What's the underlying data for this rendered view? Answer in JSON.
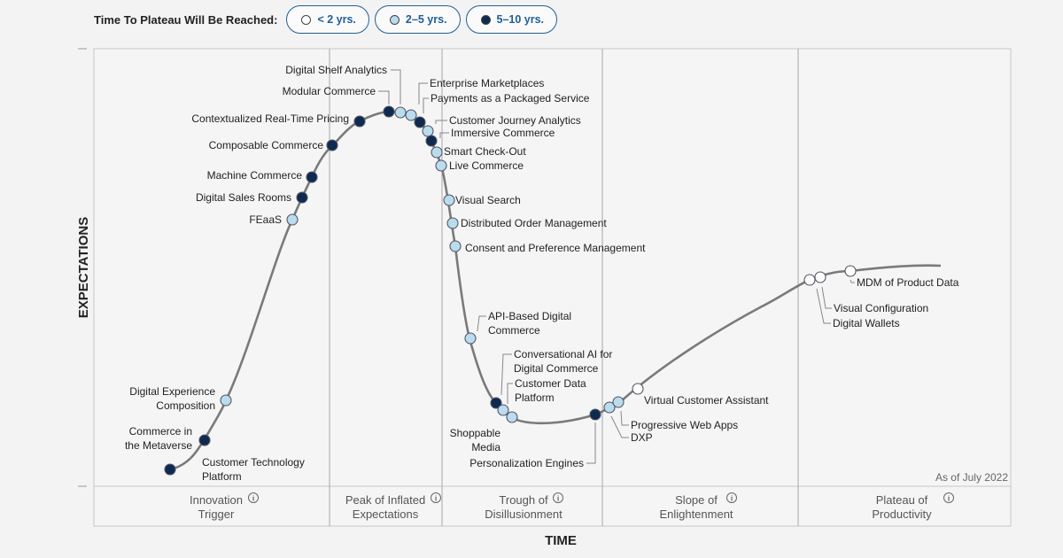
{
  "legend": {
    "title": "Time To Plateau Will Be Reached:",
    "items": [
      {
        "label": "< 2 yrs.",
        "color": "#ffffff"
      },
      {
        "label": "2–5 yrs.",
        "color": "#b9dcee"
      },
      {
        "label": "5–10 yrs.",
        "color": "#0e2a4f"
      }
    ]
  },
  "chart_data": {
    "type": "scatter",
    "subtype": "hype-cycle",
    "ylabel": "EXPECTATIONS",
    "xlabel": "TIME",
    "note": "As of July 2022",
    "phases": [
      {
        "lines": [
          "Innovation",
          "Trigger"
        ]
      },
      {
        "lines": [
          "Peak of Inflated",
          "Expectations"
        ]
      },
      {
        "lines": [
          "Trough of",
          "Disillusionment"
        ]
      },
      {
        "lines": [
          "Slope of",
          "Enlightenment"
        ]
      },
      {
        "lines": [
          "Plateau of",
          "Productivity"
        ]
      }
    ],
    "points": [
      {
        "name": "Customer Technology Platform",
        "lines": [
          "Customer Technology",
          "Platform"
        ],
        "category": "5–10 yrs."
      },
      {
        "name": "Commerce in the Metaverse",
        "lines": [
          "Commerce in",
          "the Metaverse"
        ],
        "category": "5–10 yrs."
      },
      {
        "name": "Digital Experience Composition",
        "lines": [
          "Digital Experience",
          "Composition"
        ],
        "category": "2–5 yrs."
      },
      {
        "name": "FEaaS",
        "lines": [
          "FEaaS"
        ],
        "category": "2–5 yrs."
      },
      {
        "name": "Digital Sales Rooms",
        "lines": [
          "Digital Sales Rooms"
        ],
        "category": "5–10 yrs."
      },
      {
        "name": "Machine Commerce",
        "lines": [
          "Machine Commerce"
        ],
        "category": "5–10 yrs."
      },
      {
        "name": "Composable Commerce",
        "lines": [
          "Composable Commerce"
        ],
        "category": "5–10 yrs."
      },
      {
        "name": "Contextualized Real-Time Pricing",
        "lines": [
          "Contextualized Real-Time Pricing"
        ],
        "category": "5–10 yrs."
      },
      {
        "name": "Modular Commerce",
        "lines": [
          "Modular Commerce"
        ],
        "category": "5–10 yrs."
      },
      {
        "name": "Digital Shelf Analytics",
        "lines": [
          "Digital Shelf Analytics"
        ],
        "category": "2–5 yrs."
      },
      {
        "name": "Enterprise Marketplaces",
        "lines": [
          "Enterprise Marketplaces"
        ],
        "category": "2–5 yrs."
      },
      {
        "name": "Payments as a Packaged Service",
        "lines": [
          "Payments as a Packaged Service"
        ],
        "category": "5–10 yrs."
      },
      {
        "name": "Customer Journey Analytics",
        "lines": [
          "Customer Journey Analytics"
        ],
        "category": "2–5 yrs."
      },
      {
        "name": "Immersive Commerce",
        "lines": [
          "Immersive Commerce"
        ],
        "category": "5–10 yrs."
      },
      {
        "name": "Smart Check-Out",
        "lines": [
          "Smart Check-Out"
        ],
        "category": "2–5 yrs."
      },
      {
        "name": "Live Commerce",
        "lines": [
          "Live Commerce"
        ],
        "category": "2–5 yrs."
      },
      {
        "name": "Visual Search",
        "lines": [
          "Visual Search"
        ],
        "category": "2–5 yrs."
      },
      {
        "name": "Distributed Order Management",
        "lines": [
          "Distributed Order Management"
        ],
        "category": "2–5 yrs."
      },
      {
        "name": "Consent and Preference Management",
        "lines": [
          "Consent and Preference Management"
        ],
        "category": "2–5 yrs."
      },
      {
        "name": "API-Based Digital Commerce",
        "lines": [
          "API-Based Digital",
          "Commerce"
        ],
        "category": "2–5 yrs."
      },
      {
        "name": "Conversational AI for Digital Commerce",
        "lines": [
          "Conversational AI for",
          "Digital Commerce"
        ],
        "category": "5–10 yrs."
      },
      {
        "name": "Customer Data Platform",
        "lines": [
          "Customer Data",
          "Platform"
        ],
        "category": "2–5 yrs."
      },
      {
        "name": "Shoppable Media",
        "lines": [
          "Shoppable",
          "Media"
        ],
        "category": "2–5 yrs."
      },
      {
        "name": "Personalization Engines",
        "lines": [
          "Personalization Engines"
        ],
        "category": "5–10 yrs."
      },
      {
        "name": "DXP",
        "lines": [
          "DXP"
        ],
        "category": "2–5 yrs."
      },
      {
        "name": "Progressive Web Apps",
        "lines": [
          "Progressive Web Apps"
        ],
        "category": "2–5 yrs."
      },
      {
        "name": "Virtual Customer Assistant",
        "lines": [
          "Virtual Customer Assistant"
        ],
        "category": "< 2 yrs."
      },
      {
        "name": "Digital Wallets",
        "lines": [
          "Digital Wallets"
        ],
        "category": "< 2 yrs."
      },
      {
        "name": "Visual Configuration",
        "lines": [
          "Visual Configuration"
        ],
        "category": "< 2 yrs."
      },
      {
        "name": "MDM of Product Data",
        "lines": [
          "MDM of Product Data"
        ],
        "category": "< 2 yrs."
      }
    ]
  }
}
